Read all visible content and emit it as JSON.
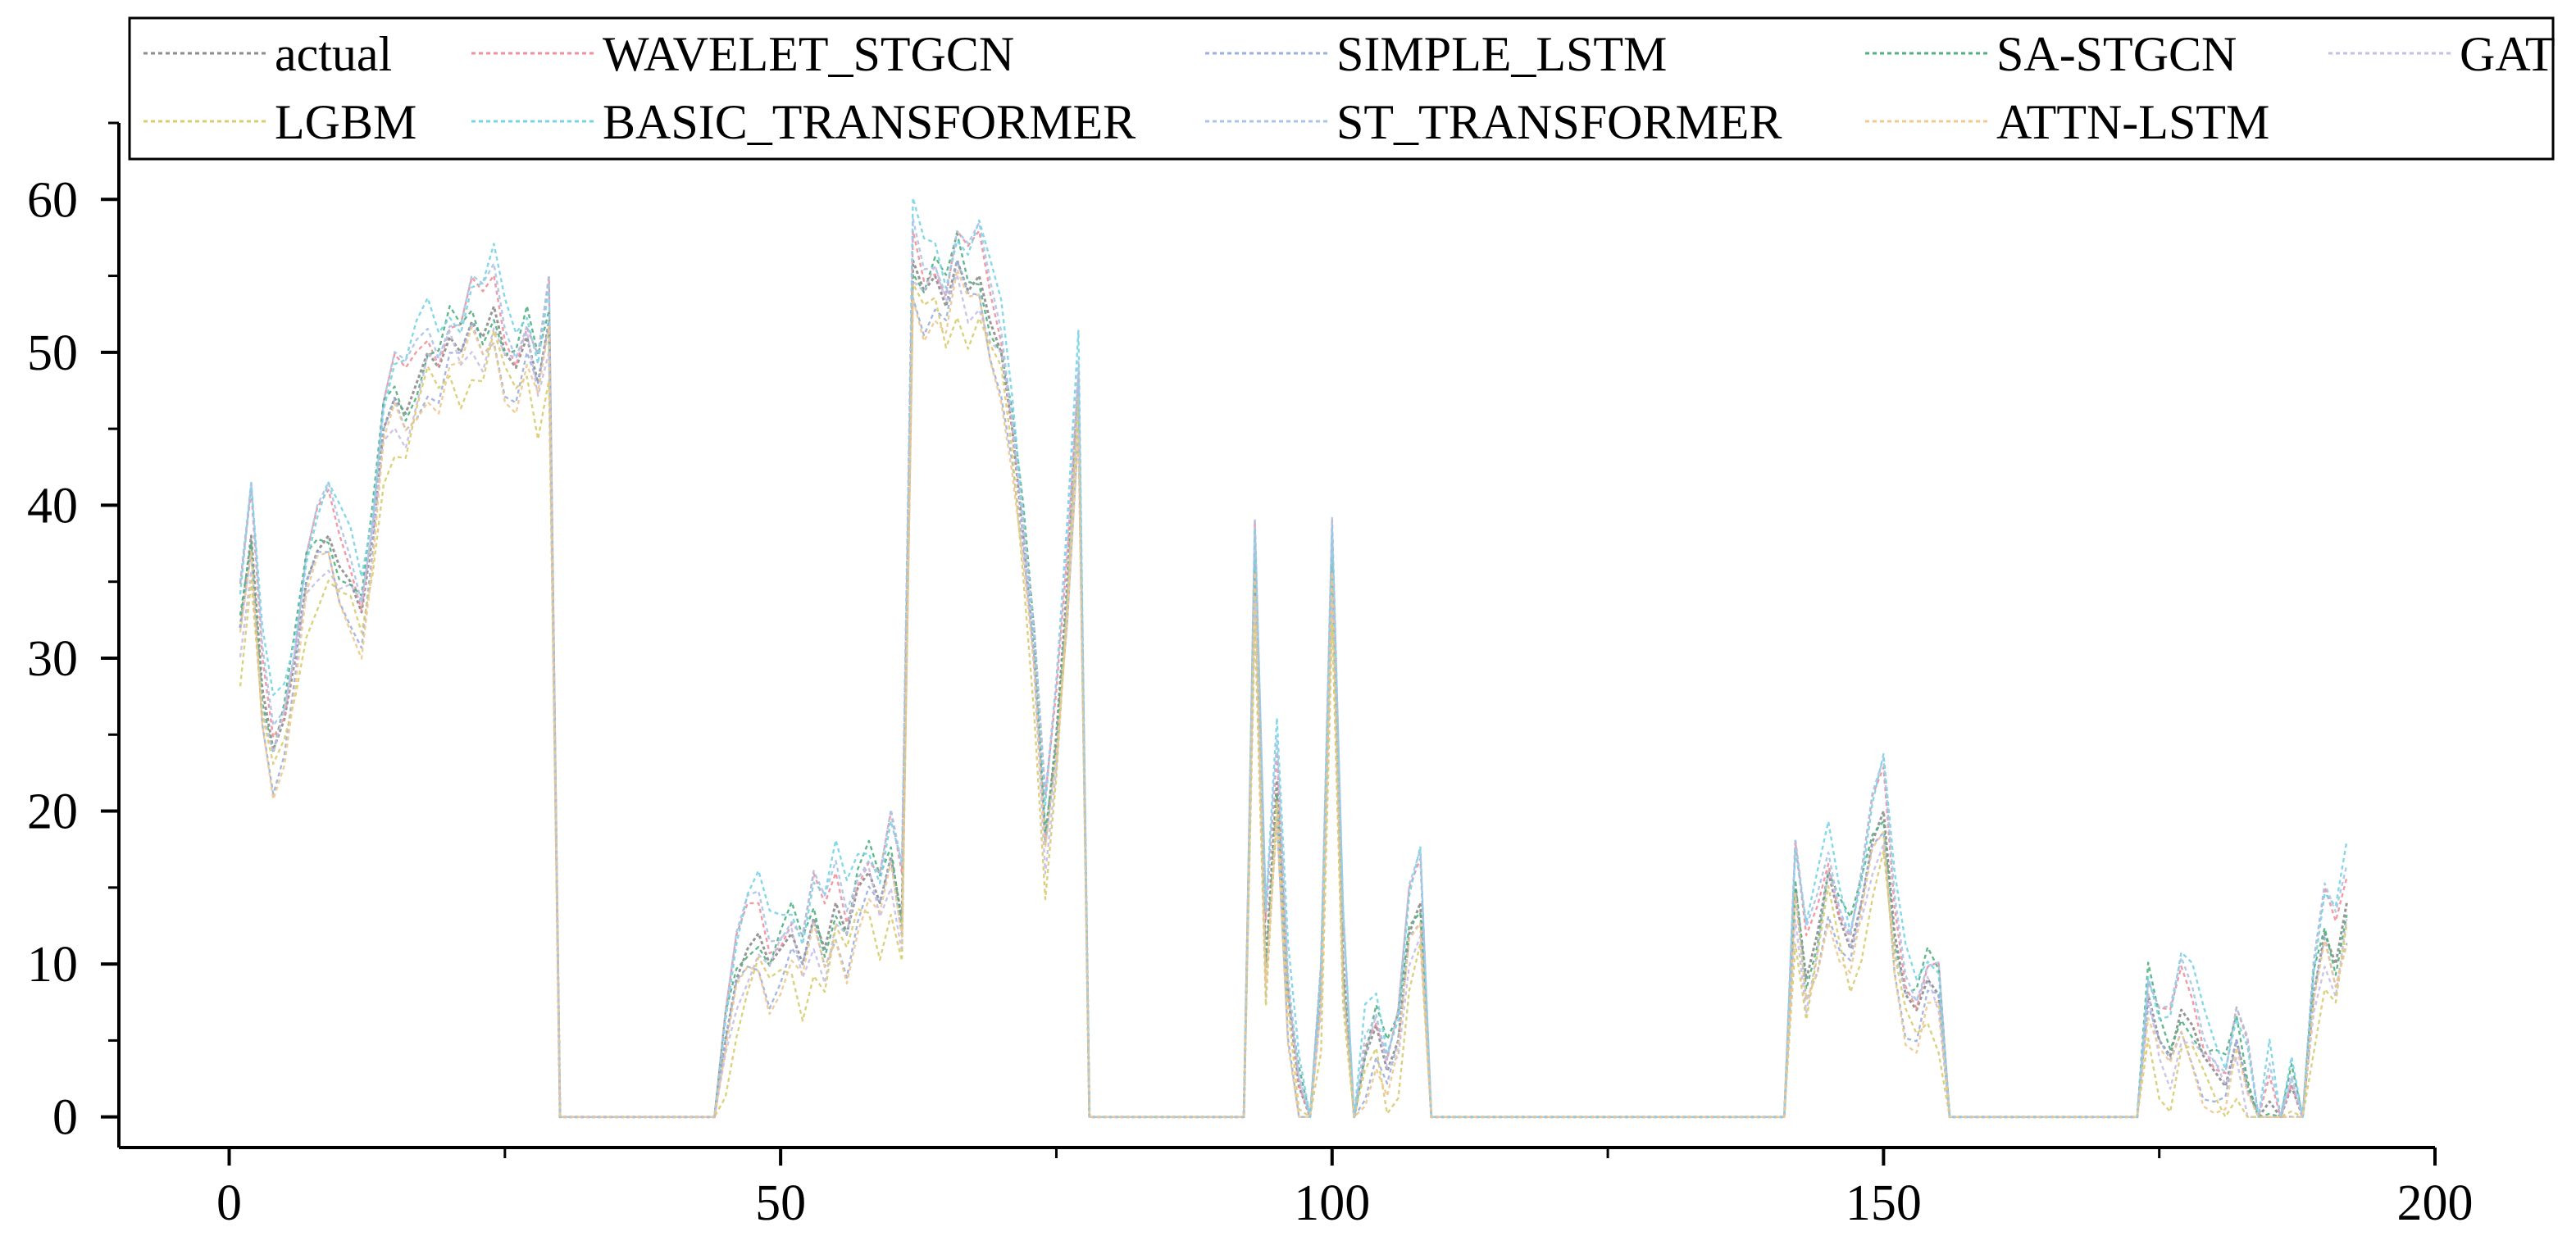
{
  "chart_data": {
    "type": "line",
    "title": "",
    "xlabel": "",
    "ylabel": "",
    "xlim": [
      -10,
      200
    ],
    "ylim": [
      -2,
      65
    ],
    "x_ticks": [
      0,
      50,
      100,
      150,
      200
    ],
    "y_ticks": [
      0,
      10,
      20,
      30,
      40,
      50,
      60
    ],
    "x_tick_labels": [
      "0",
      "50",
      "100",
      "150",
      "200"
    ],
    "y_tick_labels": [
      "0",
      "10",
      "20",
      "30",
      "40",
      "50",
      "60"
    ],
    "grid": false,
    "legend": {
      "placement": "top",
      "columns": 5,
      "order": [
        "actual",
        "WAVELET_STGCN",
        "SIMPLE_LSTM",
        "SA-STGCN",
        "GAT",
        "LGBM",
        "BASIC_TRANSFORMER",
        "ST_TRANSFORMER",
        "ATTN-LSTM"
      ]
    },
    "actual": {
      "x": [
        1,
        2,
        3,
        4,
        5,
        6,
        7,
        8,
        9,
        10,
        11,
        12,
        13,
        14,
        15,
        16,
        17,
        18,
        19,
        20,
        21,
        22,
        23,
        24,
        25,
        26,
        27,
        28,
        29,
        30,
        31,
        36,
        41,
        44,
        45,
        46,
        47,
        48,
        49,
        50,
        51,
        52,
        53,
        54,
        55,
        56,
        57,
        58,
        59,
        60,
        61,
        62,
        63,
        64,
        65,
        66,
        67,
        68,
        69,
        70,
        71,
        72,
        73,
        74,
        75,
        76,
        77,
        78,
        85,
        92,
        93,
        94,
        95,
        96,
        97,
        98,
        99,
        100,
        101,
        102,
        103,
        104,
        105,
        106,
        107,
        108,
        109,
        120,
        130,
        140,
        141,
        142,
        143,
        144,
        145,
        146,
        147,
        148,
        149,
        150,
        151,
        152,
        153,
        154,
        155,
        156,
        157,
        165,
        172,
        173,
        174,
        175,
        176,
        177,
        178,
        179,
        180,
        181,
        182,
        183,
        184,
        185,
        186,
        187,
        188,
        189,
        190,
        191,
        192
      ],
      "y": [
        32,
        38,
        28,
        24,
        26,
        30,
        35,
        37,
        38,
        36,
        35,
        33,
        38,
        45,
        47,
        46,
        48,
        50,
        49,
        51,
        50,
        52,
        51,
        53,
        50,
        49,
        51,
        48,
        52,
        0,
        0,
        0,
        0,
        0,
        5,
        9,
        11,
        12,
        10,
        11,
        12,
        10,
        13,
        11,
        14,
        12,
        15,
        16,
        14,
        17,
        13,
        56,
        54,
        55,
        53,
        56,
        54,
        55,
        52,
        50,
        45,
        38,
        30,
        18,
        25,
        35,
        48,
        0,
        0,
        0,
        36,
        10,
        22,
        8,
        2,
        0,
        8,
        36,
        10,
        0,
        4,
        6,
        3,
        5,
        12,
        14,
        0,
        0,
        0,
        0,
        0,
        15,
        9,
        12,
        16,
        13,
        11,
        14,
        18,
        20,
        12,
        8,
        7,
        9,
        8,
        0,
        0,
        0,
        0,
        0,
        8,
        5,
        4,
        7,
        6,
        4,
        3,
        2,
        5,
        2,
        0,
        1,
        0,
        2,
        0,
        8,
        12,
        10,
        14
      ]
    },
    "series": [
      {
        "name": "actual",
        "color": "#8c8c8c",
        "offset": 0
      },
      {
        "name": "WAVELET_STGCN",
        "color": "#f0909a",
        "offset": 1.6
      },
      {
        "name": "SIMPLE_LSTM",
        "color": "#9ab0de",
        "offset": -1.4
      },
      {
        "name": "SA-STGCN",
        "color": "#50b080",
        "offset": 0.6
      },
      {
        "name": "GAT",
        "color": "#c6bfe4",
        "offset": -0.8
      },
      {
        "name": "LGBM",
        "color": "#d8cc70",
        "offset": -2.4
      },
      {
        "name": "BASIC_TRANSFORMER",
        "color": "#78d4e4",
        "offset": 2.6
      },
      {
        "name": "ST_TRANSFORMER",
        "color": "#a8c4e8",
        "offset": 2.0
      },
      {
        "name": "ATTN-LSTM",
        "color": "#f0c890",
        "offset": -1.8
      }
    ]
  }
}
